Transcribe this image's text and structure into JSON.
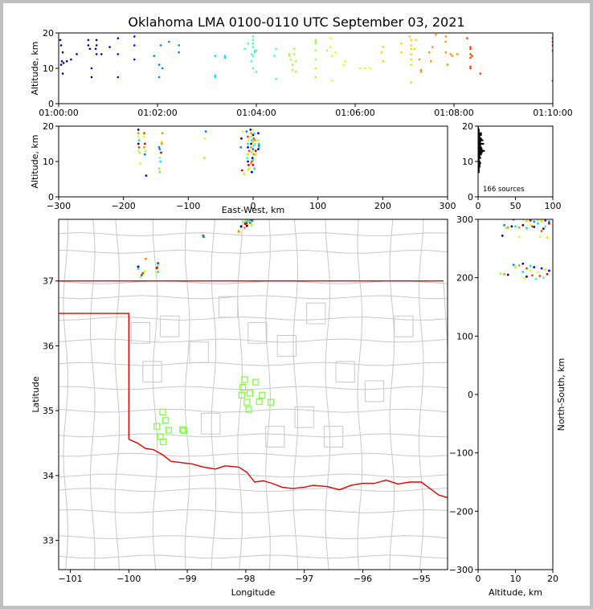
{
  "title": "Oklahoma LMA 0100-0110 UTC September 03, 2021",
  "source_count": "166 sources",
  "colors": {
    "red_line": "#e00000",
    "county_lines": "#c8c8c8",
    "station_marker": "#7cfc38",
    "colormap": [
      "#00008b",
      "#0000ff",
      "#0080ff",
      "#00e0ff",
      "#40ffb0",
      "#a0ff40",
      "#e0ff20",
      "#ffd000",
      "#ff9000",
      "#ff4000",
      "#d00000"
    ]
  },
  "chart_data": [
    {
      "id": "time_height",
      "type": "scatter",
      "xlabel": "",
      "ylabel": "Altitude, km",
      "xlim": [
        0,
        600
      ],
      "ylim": [
        0,
        20
      ],
      "xticks": [
        0,
        120,
        240,
        360,
        480,
        600
      ],
      "xticklabels": [
        "01:00:00",
        "01:02:00",
        "01:04:00",
        "01:06:00",
        "01:08:00",
        "01:10:00"
      ],
      "yticks": [
        0,
        10,
        20
      ],
      "points": [
        [
          2,
          18
        ],
        [
          3,
          16.5
        ],
        [
          3,
          11
        ],
        [
          4,
          12
        ],
        [
          5,
          8.5
        ],
        [
          5,
          14.5
        ],
        [
          6,
          11.5
        ],
        [
          10,
          12
        ],
        [
          15,
          12.5
        ],
        [
          22,
          14
        ],
        [
          36,
          16.5
        ],
        [
          36,
          18
        ],
        [
          38,
          15.5
        ],
        [
          40,
          10
        ],
        [
          40,
          7.5
        ],
        [
          45,
          15.5
        ],
        [
          46,
          14
        ],
        [
          46,
          16.5
        ],
        [
          46,
          18
        ],
        [
          52,
          14
        ],
        [
          62,
          16
        ],
        [
          72,
          18.5
        ],
        [
          72,
          14
        ],
        [
          72,
          7.5
        ],
        [
          92,
          16.5
        ],
        [
          92,
          19
        ],
        [
          92,
          12.5
        ],
        [
          116,
          13.5
        ],
        [
          122,
          7.5
        ],
        [
          122,
          11
        ],
        [
          124,
          16.5
        ],
        [
          126,
          10
        ],
        [
          134,
          17.5
        ],
        [
          146,
          16.5
        ],
        [
          146,
          14.5
        ],
        [
          190,
          13.5
        ],
        [
          190,
          8
        ],
        [
          190,
          7.5
        ],
        [
          202,
          13.5
        ],
        [
          202,
          13
        ],
        [
          226,
          15.5
        ],
        [
          230,
          17
        ],
        [
          234,
          14
        ],
        [
          234,
          12
        ],
        [
          236,
          19
        ],
        [
          236,
          18
        ],
        [
          236,
          17
        ],
        [
          236,
          16
        ],
        [
          236,
          13.5
        ],
        [
          236,
          10
        ],
        [
          238,
          15
        ],
        [
          238,
          14.5
        ],
        [
          240,
          15
        ],
        [
          240,
          9
        ],
        [
          262,
          13.5
        ],
        [
          264,
          15.5
        ],
        [
          264,
          7
        ],
        [
          280,
          14
        ],
        [
          280,
          13.5
        ],
        [
          282,
          12.5
        ],
        [
          284,
          9.5
        ],
        [
          284,
          11
        ],
        [
          286,
          15.5
        ],
        [
          286,
          14
        ],
        [
          288,
          9
        ],
        [
          288,
          12
        ],
        [
          312,
          18
        ],
        [
          312,
          17.5
        ],
        [
          312,
          17
        ],
        [
          312,
          15
        ],
        [
          312,
          12.5
        ],
        [
          312,
          10
        ],
        [
          312,
          7.5
        ],
        [
          326,
          15
        ],
        [
          330,
          18.5
        ],
        [
          330,
          16
        ],
        [
          332,
          13.5
        ],
        [
          332,
          6.5
        ],
        [
          336,
          14.5
        ],
        [
          346,
          11
        ],
        [
          348,
          12
        ],
        [
          366,
          10
        ],
        [
          372,
          10
        ],
        [
          378,
          10
        ],
        [
          392,
          14.5
        ],
        [
          394,
          16
        ],
        [
          394,
          12
        ],
        [
          416,
          17
        ],
        [
          416,
          14.5
        ],
        [
          426,
          19
        ],
        [
          428,
          18
        ],
        [
          428,
          16.5
        ],
        [
          428,
          15.5
        ],
        [
          428,
          14
        ],
        [
          428,
          12.5
        ],
        [
          428,
          11
        ],
        [
          428,
          6
        ],
        [
          432,
          15.5
        ],
        [
          434,
          18
        ],
        [
          438,
          12.5
        ],
        [
          440,
          9.5
        ],
        [
          440,
          9
        ],
        [
          450,
          14.5
        ],
        [
          452,
          12
        ],
        [
          454,
          16
        ],
        [
          458,
          19.5
        ],
        [
          470,
          19
        ],
        [
          470,
          17.5
        ],
        [
          470,
          14.5
        ],
        [
          472,
          11
        ],
        [
          476,
          14
        ],
        [
          478,
          13.5
        ],
        [
          484,
          14
        ],
        [
          496,
          18.5
        ],
        [
          500,
          16
        ],
        [
          500,
          15.5
        ],
        [
          500,
          14
        ],
        [
          500,
          13
        ],
        [
          500,
          10.5
        ],
        [
          500,
          10
        ],
        [
          502,
          13.5
        ],
        [
          512,
          8.5
        ],
        [
          600,
          18.5
        ],
        [
          600,
          17.5
        ],
        [
          600,
          16.5
        ],
        [
          600,
          15
        ],
        [
          600,
          6.5
        ]
      ]
    },
    {
      "id": "ew_height",
      "type": "scatter",
      "xlabel": "East-West, km",
      "ylabel": "Altitude, km",
      "xlim": [
        -300,
        300
      ],
      "ylim": [
        0,
        20
      ],
      "xticks": [
        -300,
        -200,
        -100,
        0,
        100,
        200,
        300
      ],
      "yticks": [
        0,
        10,
        20
      ],
      "points": [
        [
          -177,
          19
        ],
        [
          -177,
          18
        ],
        [
          -177,
          17
        ],
        [
          -176,
          16
        ],
        [
          -177,
          15
        ],
        [
          -176,
          14
        ],
        [
          -177,
          13
        ],
        [
          -175,
          12.5
        ],
        [
          -174,
          9.5
        ],
        [
          -168,
          18
        ],
        [
          -168,
          17
        ],
        [
          -167,
          15
        ],
        [
          -168,
          14
        ],
        [
          -166,
          13
        ],
        [
          -167,
          12
        ],
        [
          -165,
          6
        ],
        [
          -145,
          14
        ],
        [
          -144,
          13.5
        ],
        [
          -142,
          12.5
        ],
        [
          -144,
          11
        ],
        [
          -143,
          10
        ],
        [
          -145,
          8
        ],
        [
          -144,
          7
        ],
        [
          -141,
          15.5
        ],
        [
          -140,
          18
        ],
        [
          -141,
          15
        ],
        [
          -73,
          18.5
        ],
        [
          -75,
          16.5
        ],
        [
          -75,
          11
        ],
        [
          -16,
          18.5
        ],
        [
          -18,
          16.5
        ],
        [
          -19,
          14
        ],
        [
          -17,
          7.5
        ],
        [
          -14,
          6.5
        ],
        [
          -10,
          18.5
        ],
        [
          -8,
          17
        ],
        [
          -7,
          16
        ],
        [
          -8,
          15
        ],
        [
          -8,
          14
        ],
        [
          -6,
          13
        ],
        [
          -8,
          12
        ],
        [
          -9,
          11
        ],
        [
          -8,
          10
        ],
        [
          -7,
          9
        ],
        [
          -6,
          8
        ],
        [
          -8,
          7.5
        ],
        [
          -4,
          19
        ],
        [
          -3,
          18
        ],
        [
          -3,
          17
        ],
        [
          -2,
          16
        ],
        [
          -3,
          15
        ],
        [
          -3,
          14
        ],
        [
          -1,
          13
        ],
        [
          -2,
          12.5
        ],
        [
          -1,
          11
        ],
        [
          -2,
          10
        ],
        [
          -3,
          9.5
        ],
        [
          -2,
          7
        ],
        [
          0,
          19
        ],
        [
          0,
          17.5
        ],
        [
          1,
          16.5
        ],
        [
          0,
          15.5
        ],
        [
          1,
          14.5
        ],
        [
          0,
          13.5
        ],
        [
          1,
          12
        ],
        [
          0,
          10.5
        ],
        [
          0,
          9
        ],
        [
          2,
          18
        ],
        [
          3,
          16
        ],
        [
          3,
          15
        ],
        [
          4,
          13
        ],
        [
          4,
          12
        ],
        [
          2,
          8
        ],
        [
          8,
          18
        ],
        [
          8,
          16
        ],
        [
          9,
          15
        ],
        [
          9,
          14.5
        ],
        [
          8,
          13.5
        ],
        [
          9,
          14
        ]
      ]
    },
    {
      "id": "height_histogram",
      "type": "line",
      "xlim": [
        0,
        100
      ],
      "ylim": [
        0,
        20
      ],
      "xticks": [
        0,
        50,
        100
      ],
      "yticks": [
        0,
        10,
        20
      ],
      "annotation": "166 sources",
      "bins": [
        [
          7,
          2
        ],
        [
          7.5,
          2
        ],
        [
          8,
          2
        ],
        [
          8.5,
          3
        ],
        [
          9,
          3
        ],
        [
          9.5,
          4
        ],
        [
          10,
          3
        ],
        [
          10.5,
          2
        ],
        [
          11,
          4
        ],
        [
          11.5,
          3
        ],
        [
          12,
          5
        ],
        [
          12.5,
          6
        ],
        [
          13,
          9
        ],
        [
          13.5,
          6
        ],
        [
          14,
          5
        ],
        [
          14.5,
          4
        ],
        [
          15,
          8
        ],
        [
          15.5,
          4
        ],
        [
          16,
          7
        ],
        [
          16.5,
          5
        ],
        [
          17,
          3
        ],
        [
          17.5,
          5
        ],
        [
          18,
          5
        ],
        [
          18.5,
          2
        ],
        [
          19,
          2
        ],
        [
          19.5,
          1
        ]
      ]
    },
    {
      "id": "plan_view",
      "type": "scatter",
      "xlabel": "Longitude",
      "ylabel": "Latitude",
      "xlim": [
        -101.2,
        -94.55
      ],
      "ylim": [
        32.55,
        37.95
      ],
      "xticks": [
        -101,
        -100,
        -99,
        -98,
        -97,
        -96,
        -95
      ],
      "yticks": [
        33,
        34,
        35,
        36,
        37
      ],
      "stations": [
        [
          -98.02,
          35.48
        ],
        [
          -97.83,
          35.44
        ],
        [
          -98.05,
          35.36
        ],
        [
          -98.07,
          35.24
        ],
        [
          -97.93,
          35.27
        ],
        [
          -97.72,
          35.24
        ],
        [
          -97.98,
          35.13
        ],
        [
          -97.77,
          35.14
        ],
        [
          -97.57,
          35.13
        ],
        [
          -97.95,
          35.02
        ],
        [
          -99.42,
          34.98
        ],
        [
          -99.37,
          34.85
        ],
        [
          -99.52,
          34.76
        ],
        [
          -99.32,
          34.7
        ],
        [
          -99.46,
          34.6
        ],
        [
          -99.41,
          34.52
        ],
        [
          -99.08,
          34.71
        ],
        [
          -99.06,
          34.69
        ]
      ],
      "points": [
        [
          -99.84,
          37.22
        ],
        [
          -99.84,
          37.19
        ],
        [
          -99.73,
          37.15
        ],
        [
          -99.76,
          37.12
        ],
        [
          -99.78,
          37.09
        ],
        [
          -99.8,
          37.06
        ],
        [
          -99.71,
          37.34
        ],
        [
          -99.5,
          37.27
        ],
        [
          -99.5,
          37.25
        ],
        [
          -99.51,
          37.22
        ],
        [
          -99.52,
          37.2
        ],
        [
          -99.5,
          37.14
        ],
        [
          -99.53,
          37.12
        ],
        [
          -98.73,
          37.7
        ],
        [
          -98.72,
          37.68
        ],
        [
          -98.12,
          37.78
        ],
        [
          -98.12,
          37.76
        ],
        [
          -98.08,
          37.84
        ],
        [
          -98.03,
          37.91
        ],
        [
          -98.0,
          37.93
        ],
        [
          -97.99,
          37.89
        ],
        [
          -97.97,
          37.92
        ],
        [
          -97.95,
          37.88
        ],
        [
          -97.93,
          37.94
        ],
        [
          -97.92,
          37.9
        ],
        [
          -97.9,
          37.86
        ],
        [
          -98.02,
          37.82
        ],
        [
          -97.98,
          37.85
        ],
        [
          -97.95,
          37.93
        ],
        [
          -97.91,
          37.91
        ],
        [
          -98.01,
          37.88
        ],
        [
          -97.89,
          37.93
        ]
      ]
    },
    {
      "id": "height_ns",
      "type": "scatter",
      "xlabel": "Altitude, km",
      "ylabel": "North-South, km",
      "xlim": [
        0,
        20
      ],
      "ylim": [
        -300,
        300
      ],
      "xticks": [
        0,
        10,
        20
      ],
      "yticks": [
        -300,
        -200,
        -100,
        0,
        100,
        200,
        300
      ],
      "points": [
        [
          6.5,
          272
        ],
        [
          7,
          290
        ],
        [
          7.5,
          285
        ],
        [
          8,
          286
        ],
        [
          9,
          288
        ],
        [
          10,
          288
        ],
        [
          11,
          270
        ],
        [
          11,
          286
        ],
        [
          12,
          290
        ],
        [
          13,
          285
        ],
        [
          14,
          291
        ],
        [
          14.5,
          288
        ],
        [
          15,
          287
        ],
        [
          16,
          293
        ],
        [
          16.5,
          270
        ],
        [
          17,
          280
        ],
        [
          17.5,
          284
        ],
        [
          18,
          288
        ],
        [
          18.5,
          269
        ],
        [
          19,
          293
        ],
        [
          9.5,
          300
        ],
        [
          12,
          300
        ],
        [
          13,
          297
        ],
        [
          14,
          298
        ],
        [
          15,
          296
        ],
        [
          16,
          299
        ],
        [
          17,
          297
        ],
        [
          18,
          298
        ],
        [
          19,
          296
        ],
        [
          6,
          207
        ],
        [
          7,
          206
        ],
        [
          8,
          205
        ],
        [
          9.5,
          222
        ],
        [
          10,
          218
        ],
        [
          11,
          221
        ],
        [
          12,
          224
        ],
        [
          12,
          210
        ],
        [
          12.5,
          200
        ],
        [
          13,
          216
        ],
        [
          13,
          202
        ],
        [
          14,
          220
        ],
        [
          14,
          212
        ],
        [
          14.5,
          204
        ],
        [
          15,
          218
        ],
        [
          15.5,
          198
        ],
        [
          16,
          210
        ],
        [
          16.5,
          203
        ],
        [
          17,
          216
        ],
        [
          17.5,
          200
        ],
        [
          18,
          214
        ],
        [
          18.5,
          206
        ],
        [
          19,
          212
        ]
      ]
    }
  ]
}
